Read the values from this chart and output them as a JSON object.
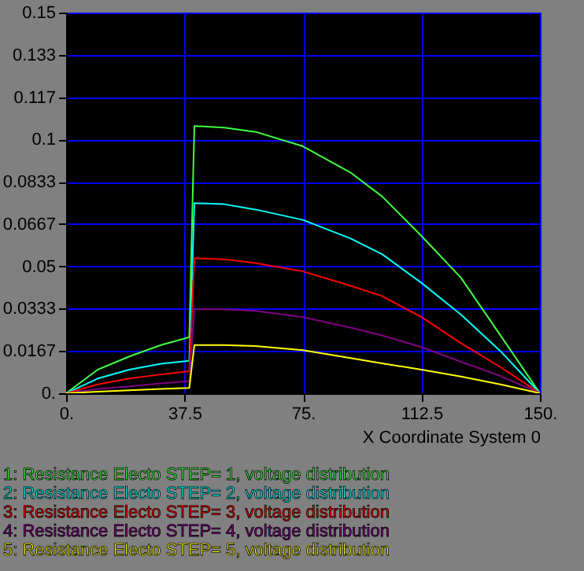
{
  "chart_data": {
    "type": "line",
    "xlabel": "X Coordinate System 0",
    "x": [
      0,
      10,
      20,
      30,
      39,
      40.6,
      50,
      60,
      75,
      90,
      100,
      112.5,
      125,
      137.5,
      150
    ],
    "series": [
      {
        "name": "1: Resistance Electo STEP= 1,  voltage distribution",
        "color": "#40ff40",
        "values": [
          0,
          0.0093,
          0.0145,
          0.019,
          0.0221,
          0.1053,
          0.1047,
          0.103,
          0.0973,
          0.087,
          0.0776,
          0.062,
          0.0455,
          0.0228,
          0
        ]
      },
      {
        "name": "2: Resistance Electo STEP= 2,  voltage distribution",
        "color": "#00ffff",
        "values": [
          0,
          0.0058,
          0.0093,
          0.0116,
          0.0128,
          0.0749,
          0.0745,
          0.0724,
          0.0683,
          0.061,
          0.0548,
          0.0435,
          0.031,
          0.0166,
          0
        ]
      },
      {
        "name": "3: Resistance Electo STEP= 3,  voltage distribution",
        "color": "#ff0000",
        "values": [
          0,
          0.0035,
          0.0058,
          0.0074,
          0.0087,
          0.0532,
          0.0528,
          0.0513,
          0.048,
          0.0424,
          0.0383,
          0.03,
          0.0197,
          0.0103,
          0
        ]
      },
      {
        "name": "4: Resistance Electo STEP= 4,  voltage distribution",
        "color": "#800080",
        "values": [
          0,
          0.0017,
          0.0027,
          0.0039,
          0.0048,
          0.0331,
          0.0331,
          0.0325,
          0.03,
          0.0259,
          0.0228,
          0.0182,
          0.0124,
          0.0068,
          0
        ]
      },
      {
        "name": "5: Resistance Electo STEP= 5,  voltage distribution",
        "color": "#ffff00",
        "values": [
          0,
          0.0006,
          0.0012,
          0.0017,
          0.0021,
          0.019,
          0.019,
          0.0186,
          0.017,
          0.0139,
          0.0118,
          0.0093,
          0.0066,
          0.0035,
          0
        ]
      }
    ],
    "xlim": [
      0,
      150
    ],
    "xticks": [
      {
        "value": 0,
        "label": "0."
      },
      37.5,
      {
        "value": 75,
        "label": "75."
      },
      112.5,
      {
        "value": 150,
        "label": "150."
      }
    ],
    "ylim": [
      0,
      0.15
    ],
    "yticks": [
      {
        "value": 0,
        "label": "0."
      },
      {
        "value": 0.016667,
        "label": "0.0167"
      },
      {
        "value": 0.033333,
        "label": "0.0333"
      },
      0.05,
      {
        "value": 0.066667,
        "label": "0.0667"
      },
      {
        "value": 0.083333,
        "label": "0.0833"
      },
      0.1,
      {
        "value": 0.116667,
        "label": "0.117"
      },
      {
        "value": 0.133333,
        "label": "0.133"
      },
      0.15
    ],
    "grid": true,
    "legend": "bottom",
    "marker": "none",
    "line_style": "solid"
  }
}
